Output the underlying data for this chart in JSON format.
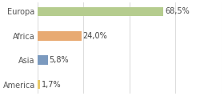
{
  "categories": [
    "Europa",
    "Africa",
    "Asia",
    "America"
  ],
  "values": [
    68.5,
    24.0,
    5.8,
    1.7
  ],
  "labels": [
    "68,5%",
    "24,0%",
    "5,8%",
    "1,7%"
  ],
  "colors": [
    "#b5cc8e",
    "#e8aa72",
    "#7b9abf",
    "#e8c96a"
  ],
  "background_color": "#ffffff",
  "xlim": [
    0,
    100
  ],
  "bar_height": 0.38,
  "label_fontsize": 7.0,
  "tick_fontsize": 7.0,
  "grid_color": "#dddddd"
}
